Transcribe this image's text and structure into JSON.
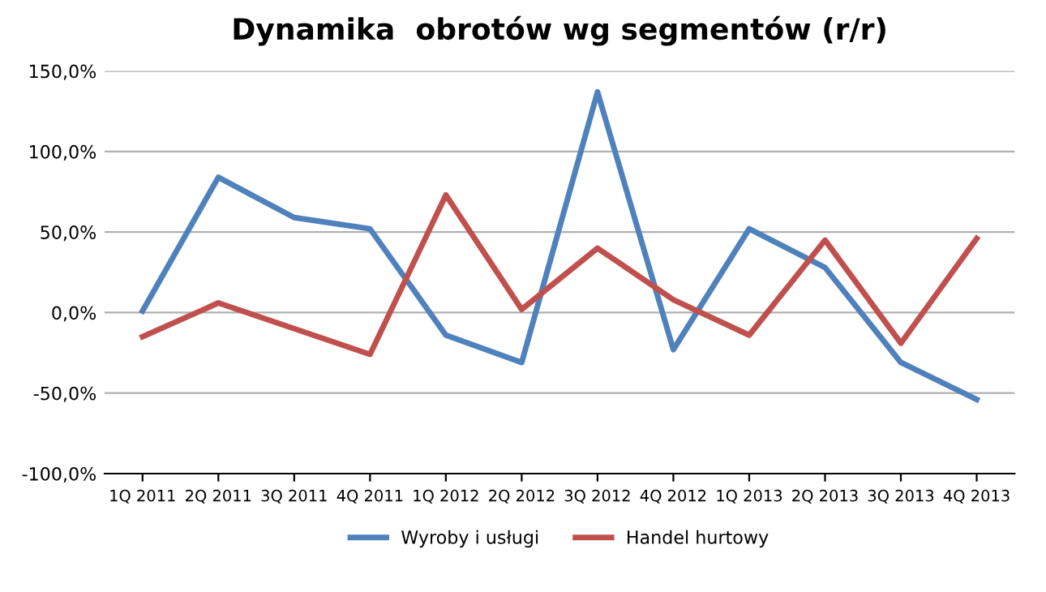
{
  "chart_data": {
    "type": "line",
    "title": "Dynamika  obrotów wg segmentów (r/r)",
    "categories": [
      "1Q 2011",
      "2Q 2011",
      "3Q 2011",
      "4Q 2011",
      "1Q 2012",
      "2Q 2012",
      "3Q 2012",
      "4Q 2012",
      "1Q 2013",
      "2Q 2013",
      "3Q 2013",
      "4Q 2013"
    ],
    "series": [
      {
        "name": "Wyroby i usługi",
        "color": "#4f81bd",
        "values": [
          1,
          84,
          59,
          52,
          -14,
          -31,
          137,
          -23,
          52,
          28,
          -31,
          -54
        ]
      },
      {
        "name": "Handel hurtowy",
        "color": "#c0504d",
        "values": [
          -15,
          6,
          -10,
          -26,
          73,
          2,
          40,
          8,
          -14,
          45,
          -19,
          46
        ]
      }
    ],
    "ylim": [
      -100,
      150
    ],
    "yticks": [
      {
        "value": -100,
        "label": "-100,0%"
      },
      {
        "value": -50,
        "label": "-50,0%"
      },
      {
        "value": 0,
        "label": "0,0%"
      },
      {
        "value": 50,
        "label": "50,0%"
      },
      {
        "value": 100,
        "label": "100,0%"
      },
      {
        "value": 150,
        "label": "150,0%"
      }
    ],
    "grid": "y",
    "legend": "bottom",
    "marker": "none",
    "line_style": "solid"
  }
}
